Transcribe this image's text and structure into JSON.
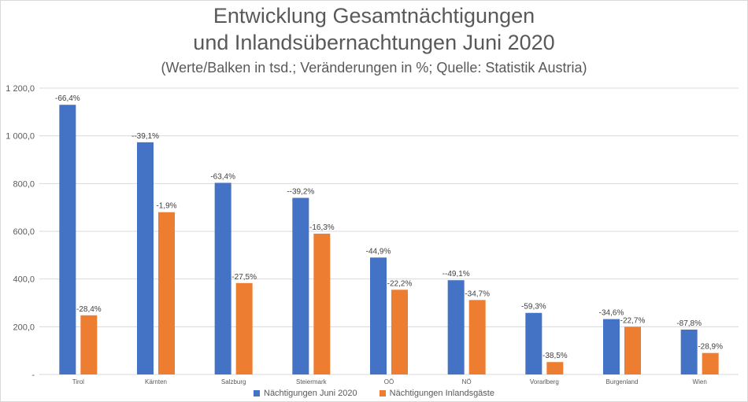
{
  "chart_data": {
    "type": "bar",
    "title_line1": "Entwicklung Gesamtnächtigungen",
    "title_line2": "und Inlandsübernachtungen Juni 2020",
    "subtitle": "(Werte/Balken in tsd.; Veränderungen in %; Quelle: Statistik Austria)",
    "categories": [
      "Tirol",
      "Kärnten",
      "Salzburg",
      "Steiermark",
      "OÖ",
      "NÖ",
      "Vorarlberg",
      "Burgenland",
      "Wien"
    ],
    "ylim": [
      0,
      1200
    ],
    "yticks": [
      "-",
      "200,0",
      "400,0",
      "600,0",
      "800,0",
      "1 000,0",
      "1 200,0"
    ],
    "grid": true,
    "legend_position": "bottom",
    "series": [
      {
        "name": "Nächtigungen Juni 2020",
        "color": "#4472C4",
        "values": [
          1130,
          973,
          803,
          740,
          490,
          395,
          258,
          232,
          188
        ],
        "labels": [
          "-66,4%",
          "--39,1%",
          "-63,4%",
          "--39,2%",
          "-44,9%",
          "--49,1%",
          "-59,3%",
          "-34,6%",
          "-87,8%"
        ]
      },
      {
        "name": "Nächtigungen Inlandsgäste",
        "color": "#ED7D31",
        "values": [
          248,
          680,
          383,
          590,
          355,
          312,
          52,
          200,
          90
        ],
        "labels": [
          "-28,4%",
          "-1,9%",
          "-27,5%",
          "-16,3%",
          "-22,2%",
          "-34,7%",
          "-38,5%",
          "-22,7%",
          "-28,9%"
        ]
      }
    ]
  }
}
